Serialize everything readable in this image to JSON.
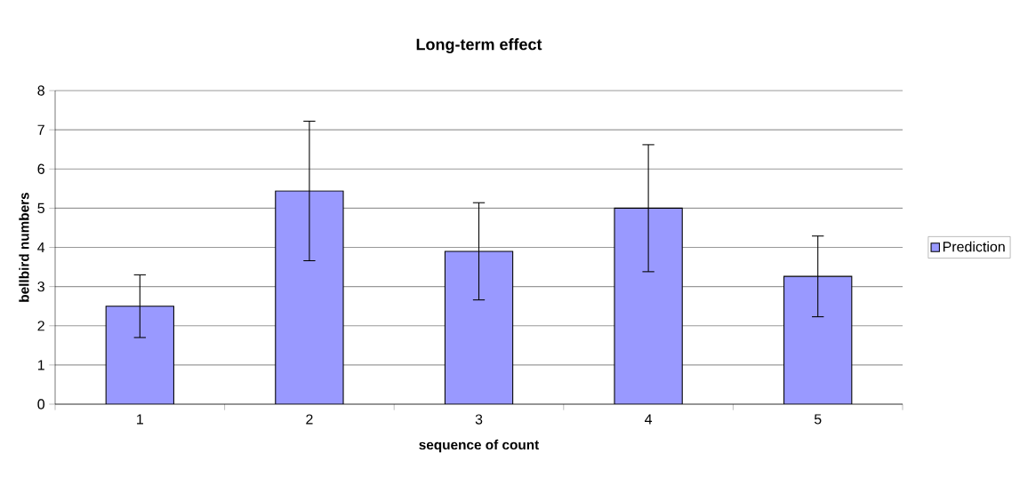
{
  "chart_data": {
    "type": "bar",
    "title": "Long-term effect",
    "xlabel": "sequence of count",
    "ylabel": "bellbird numbers",
    "categories": [
      "1",
      "2",
      "3",
      "4",
      "5"
    ],
    "series": [
      {
        "name": "Prediction",
        "color": "#9999ff",
        "values": [
          2.5,
          5.44,
          3.9,
          5.0,
          3.26
        ],
        "errors": [
          0.8,
          1.78,
          1.24,
          1.62,
          1.03
        ]
      }
    ],
    "ylim": [
      0,
      8
    ],
    "yticks": [
      0,
      1,
      2,
      3,
      4,
      5,
      6,
      7,
      8
    ],
    "grid": "y",
    "legend": "right"
  }
}
